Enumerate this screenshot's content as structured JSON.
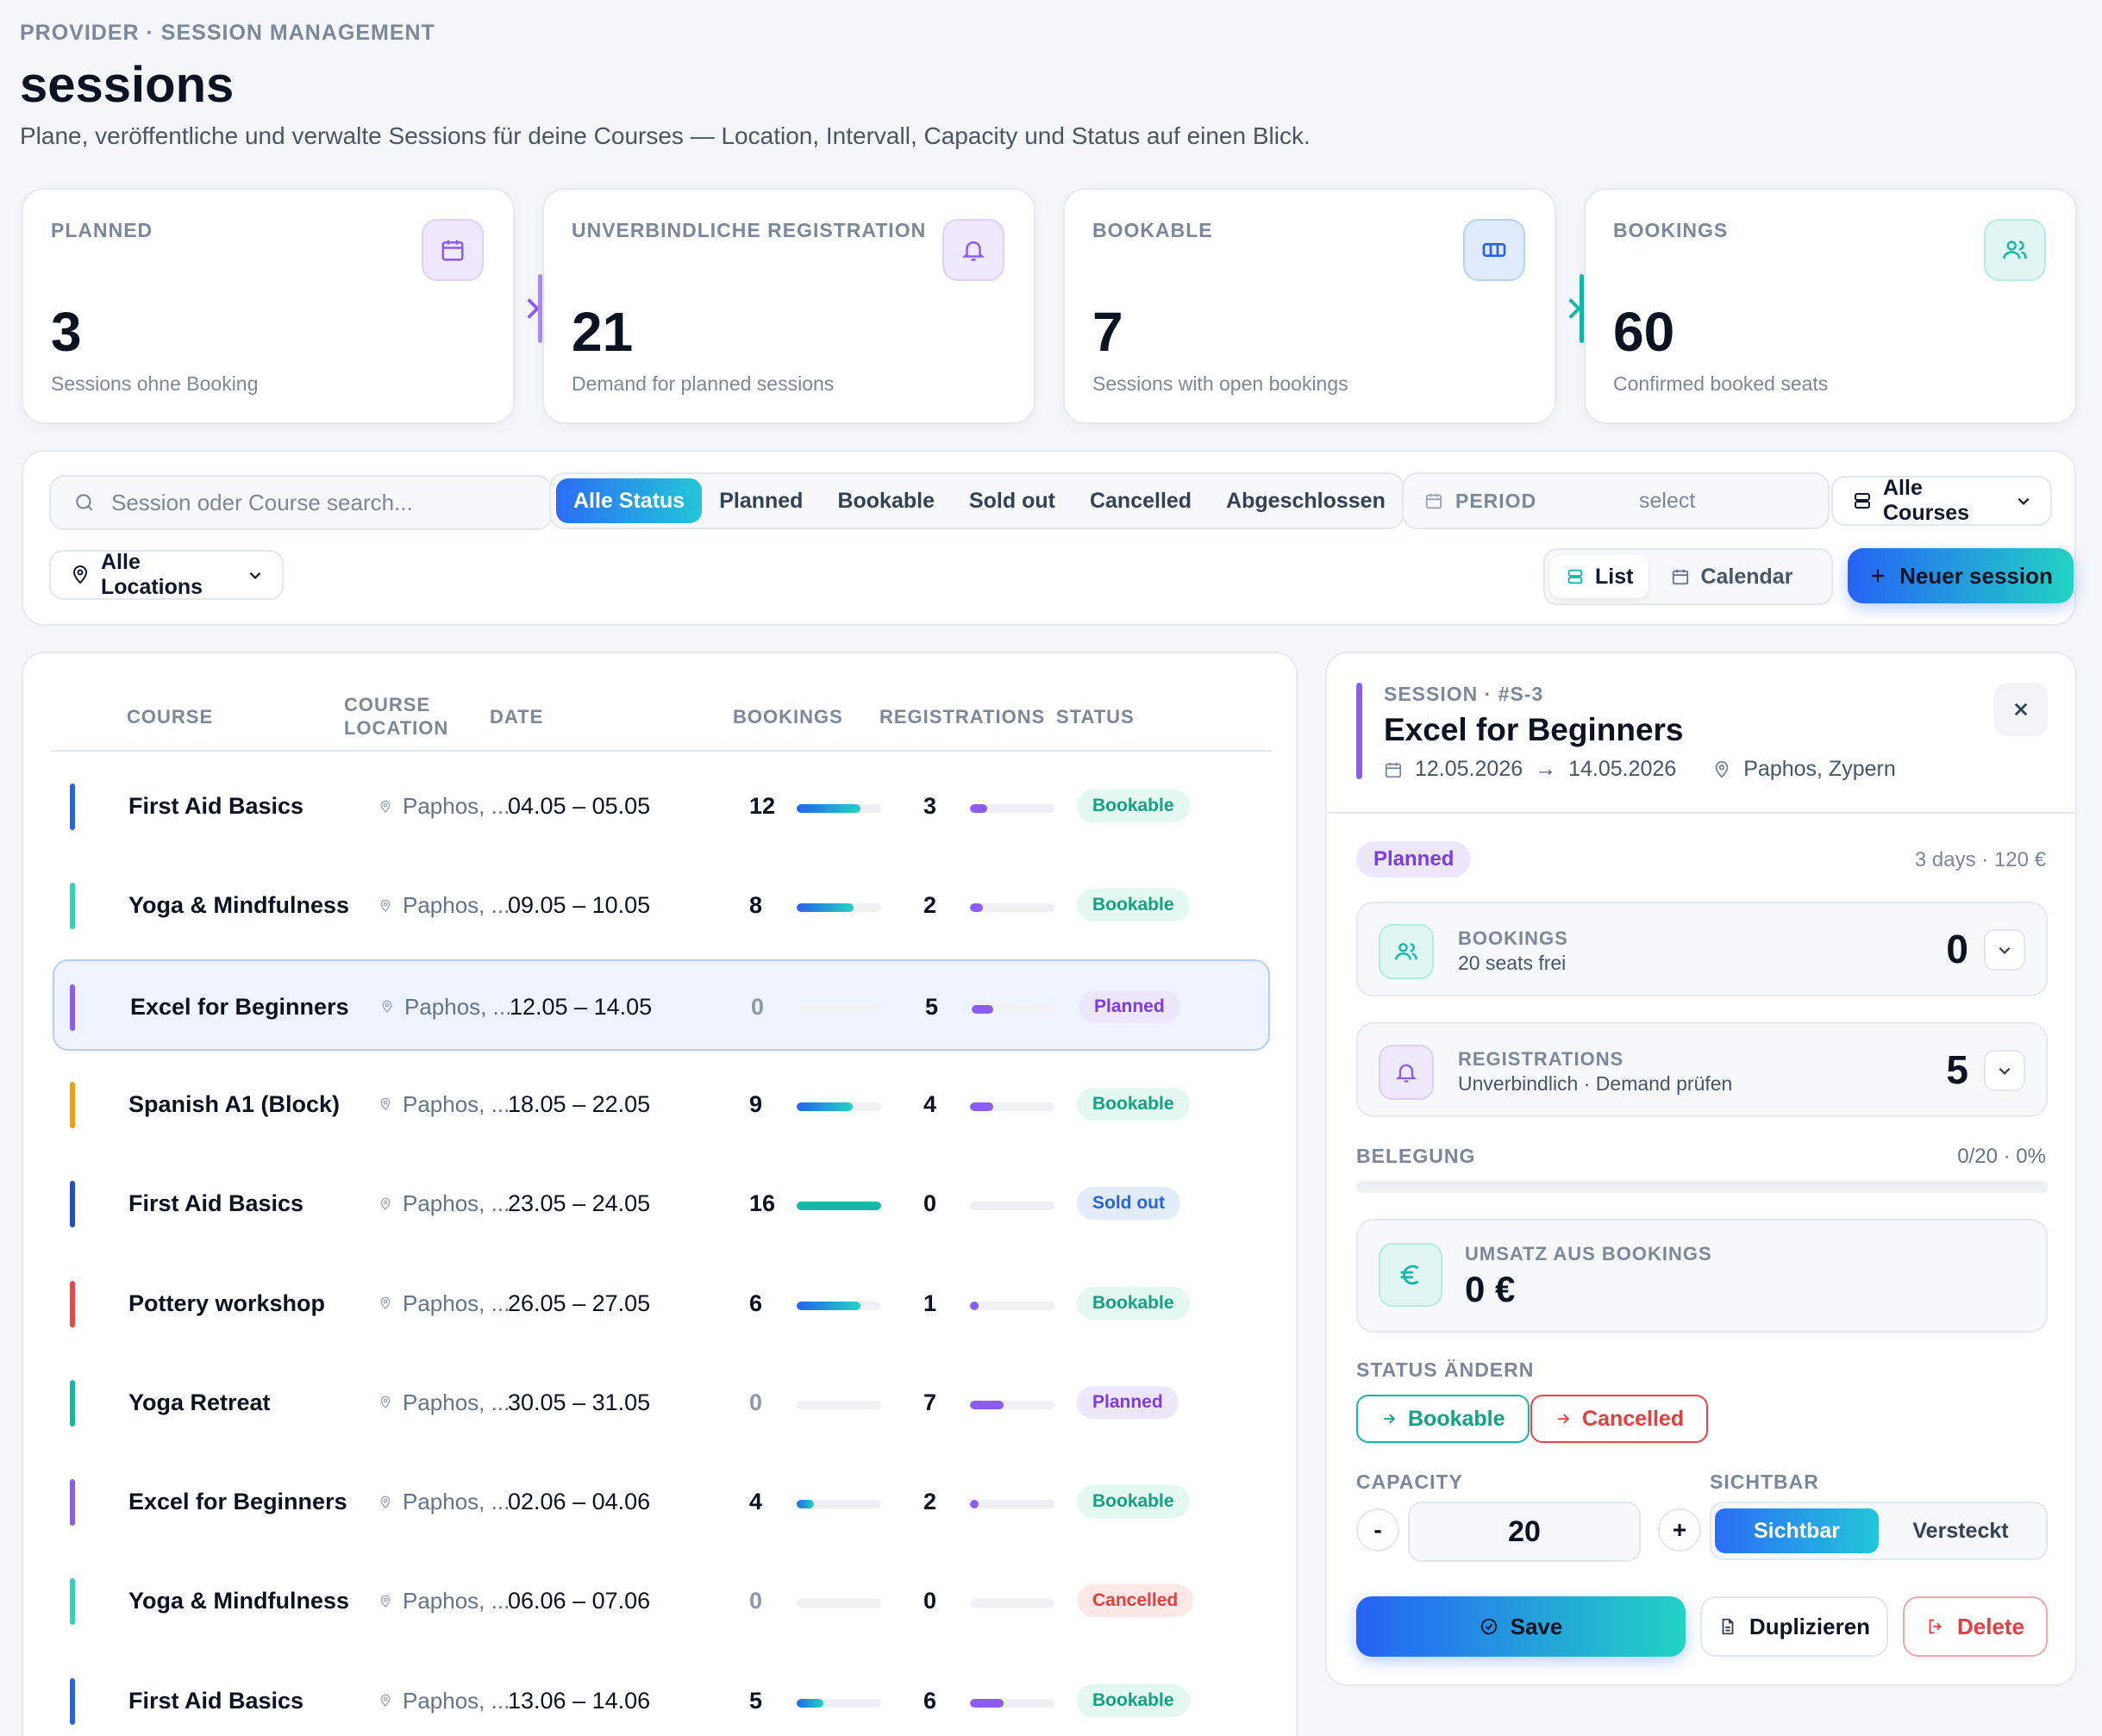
{
  "header": {
    "eyebrow": "PROVIDER · SESSION MANAGEMENT",
    "title": "sessions",
    "subtitle": "Plane, veröffentliche und verwalte Sessions für deine Courses — Location, Intervall, Capacity und Status auf einen Blick."
  },
  "stats": [
    {
      "label": "PLANNED",
      "value": "3",
      "desc": "Sessions ohne Booking",
      "icon": "calendar-icon",
      "color": "#8b5cf6"
    },
    {
      "label": "UNVERBINDLICHE REGISTRATION",
      "value": "21",
      "desc": "Demand for planned sessions",
      "icon": "bell-icon",
      "color": "#8b5cf6"
    },
    {
      "label": "BOOKABLE",
      "value": "7",
      "desc": "Sessions with open bookings",
      "icon": "ticket-icon",
      "color": "#2563eb"
    },
    {
      "label": "BOOKINGS",
      "value": "60",
      "desc": "Confirmed booked seats",
      "icon": "users-icon",
      "color": "#14b8a6"
    }
  ],
  "filters": {
    "search_placeholder": "Session oder Course search...",
    "status_tabs": [
      "Alle Status",
      "Planned",
      "Bookable",
      "Sold out",
      "Cancelled",
      "Abgeschlossen"
    ],
    "active_status": "Alle Status",
    "period_label": "PERIOD",
    "period_value": "select",
    "courses_dropdown": "Alle Courses",
    "locations_dropdown": "Alle Locations",
    "view_list": "List",
    "view_calendar": "Calendar",
    "new_button": "Neuer session"
  },
  "table": {
    "columns": {
      "course": "COURSE",
      "location_1": "COURSE",
      "location_2": "LOCATION",
      "date": "DATE",
      "bookings": "BOOKINGS",
      "registrations": "REGISTRATIONS",
      "status": "STATUS"
    },
    "rows": [
      {
        "course": "First Aid Basics",
        "location": "Paphos, ...",
        "date": "04.05 – 05.05",
        "bookings": "12",
        "booking_fill": 0.75,
        "registrations": "3",
        "reg_fill": 0.2,
        "status": "Bookable",
        "stripe": "#2563eb",
        "selected": false
      },
      {
        "course": "Yoga & Mindfulness",
        "location": "Paphos, ...",
        "date": "09.05 – 10.05",
        "bookings": "8",
        "booking_fill": 0.67,
        "registrations": "2",
        "reg_fill": 0.15,
        "status": "Bookable",
        "stripe": "#2dd4bf",
        "selected": false
      },
      {
        "course": "Excel for Beginners",
        "location": "Paphos, ...",
        "date": "12.05 – 14.05",
        "bookings": "0",
        "booking_fill": 0,
        "registrations": "5",
        "reg_fill": 0.25,
        "status": "Planned",
        "stripe": "#8b5cf6",
        "selected": true
      },
      {
        "course": "Spanish A1 (Block)",
        "location": "Paphos, ...",
        "date": "18.05 – 22.05",
        "bookings": "9",
        "booking_fill": 0.66,
        "registrations": "4",
        "reg_fill": 0.28,
        "status": "Bookable",
        "stripe": "#f59e0b",
        "selected": false
      },
      {
        "course": "First Aid Basics",
        "location": "Paphos, ...",
        "date": "23.05 – 24.05",
        "bookings": "16",
        "booking_fill": 1.0,
        "registrations": "0",
        "reg_fill": 0,
        "status": "Sold out",
        "stripe": "#1d4ed8",
        "selected": false
      },
      {
        "course": "Pottery workshop",
        "location": "Paphos, ...",
        "date": "26.05 – 27.05",
        "bookings": "6",
        "booking_fill": 0.75,
        "registrations": "1",
        "reg_fill": 0.1,
        "status": "Bookable",
        "stripe": "#ef4444",
        "selected": false
      },
      {
        "course": "Yoga Retreat",
        "location": "Paphos, ...",
        "date": "30.05 – 31.05",
        "bookings": "0",
        "booking_fill": 0,
        "registrations": "7",
        "reg_fill": 0.4,
        "status": "Planned",
        "stripe": "#14b8a6",
        "selected": false
      },
      {
        "course": "Excel for Beginners",
        "location": "Paphos, ...",
        "date": "02.06 – 04.06",
        "bookings": "4",
        "booking_fill": 0.2,
        "registrations": "2",
        "reg_fill": 0.1,
        "status": "Bookable",
        "stripe": "#8b5cf6",
        "selected": false
      },
      {
        "course": "Yoga & Mindfulness",
        "location": "Paphos, ...",
        "date": "06.06 – 07.06",
        "bookings": "0",
        "booking_fill": 0,
        "registrations": "0",
        "reg_fill": 0,
        "status": "Cancelled",
        "stripe": "#2dd4bf",
        "selected": false
      },
      {
        "course": "First Aid Basics",
        "location": "Paphos, ...",
        "date": "13.06 – 14.06",
        "bookings": "5",
        "booking_fill": 0.32,
        "registrations": "6",
        "reg_fill": 0.4,
        "status": "Bookable",
        "stripe": "#2563eb",
        "selected": false
      }
    ]
  },
  "status_colors": {
    "Bookable": {
      "bg": "#e3f8f1",
      "fg": "#10a37f"
    },
    "Planned": {
      "bg": "#ede7fb",
      "fg": "#7c3aed"
    },
    "Sold out": {
      "bg": "#e3ecfd",
      "fg": "#2563eb"
    },
    "Cancelled": {
      "bg": "#fde8e8",
      "fg": "#e53e3e"
    }
  },
  "detail": {
    "eyebrow": "SESSION · #S-3",
    "title": "Excel for Beginners",
    "date_from": "12.05.2026",
    "date_arrow": "→",
    "date_to": "14.05.2026",
    "location": "Paphos, Zypern",
    "status_badge": "Planned",
    "duration_price": "3 days · 120 €",
    "bookings_label": "BOOKINGS",
    "bookings_sub": "20 seats frei",
    "bookings_value": "0",
    "registrations_label": "REGISTRATIONS",
    "registrations_sub": "Unverbindlich · Demand prüfen",
    "registrations_value": "5",
    "belegung_label": "BELEGUNG",
    "belegung_value": "0/20 · 0%",
    "belegung_fill": 0,
    "revenue_label": "UMSATZ AUS BOOKINGS",
    "revenue_value": "0 €",
    "change_status_label": "STATUS ÄNDERN",
    "to_bookable": "Bookable",
    "to_cancelled": "Cancelled",
    "capacity_label": "CAPACITY",
    "capacity_value": "20",
    "minus": "-",
    "plus": "+",
    "visible_label": "SICHTBAR",
    "visible_on": "Sichtbar",
    "visible_off": "Versteckt",
    "save": "Save",
    "duplicate": "Duplizieren",
    "delete": "Delete"
  }
}
